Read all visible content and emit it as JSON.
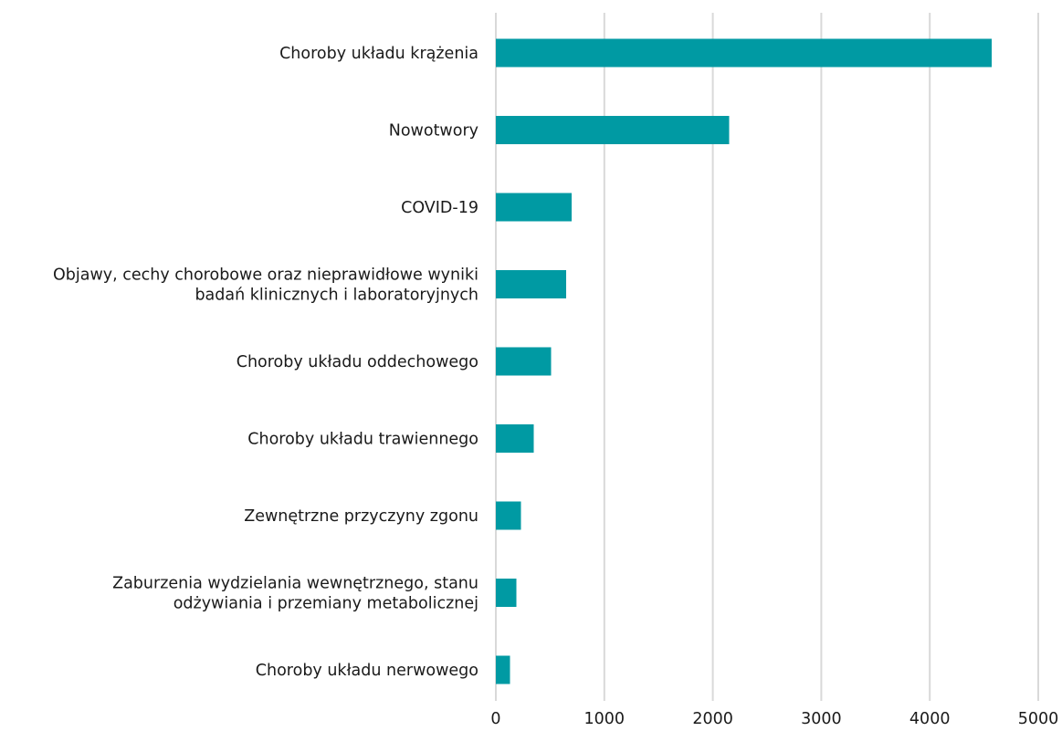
{
  "chart_data": {
    "type": "bar",
    "orientation": "horizontal",
    "title": "",
    "xlabel": "",
    "ylabel": "",
    "xlim": [
      0,
      5000
    ],
    "x_ticks": [
      0,
      1000,
      2000,
      3000,
      4000,
      5000
    ],
    "x_tick_labels": [
      "0",
      "1000",
      "2000",
      "3000",
      "4000",
      "5000"
    ],
    "grid": "vertical",
    "legend": "none",
    "bar_color": "#009aa3",
    "categories": [
      [
        "Choroby układu krążenia"
      ],
      [
        "Nowotwory"
      ],
      [
        "COVID-19"
      ],
      [
        "Objawy, cechy chorobowe oraz nieprawidłowe wyniki",
        "badań klinicznych i laboratoryjnych"
      ],
      [
        "Choroby układu oddechowego"
      ],
      [
        "Choroby układu trawiennego"
      ],
      [
        "Zewnętrzne przyczyny zgonu"
      ],
      [
        "Zaburzenia wydzielania wewnętrznego,  stanu",
        "odżywiania i przemiany metabolicznej"
      ],
      [
        "Choroby układu nerwowego"
      ]
    ],
    "values": [
      4570,
      2150,
      700,
      650,
      510,
      350,
      230,
      190,
      130
    ]
  }
}
